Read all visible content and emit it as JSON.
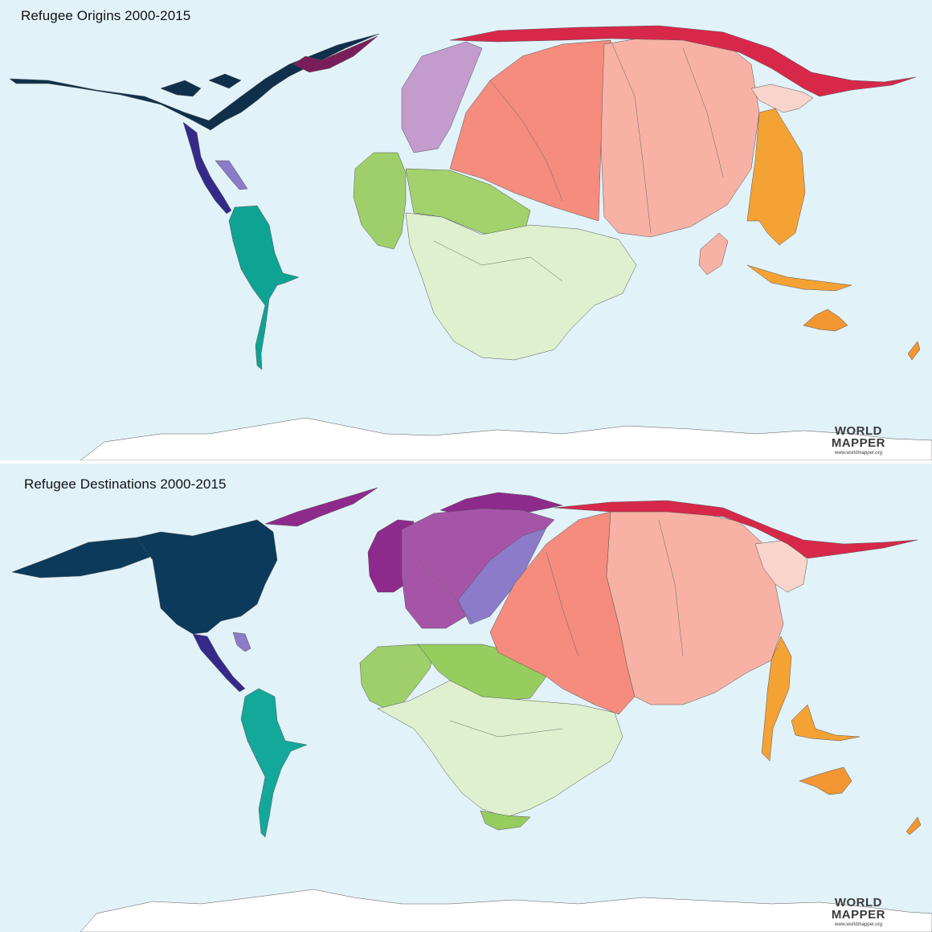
{
  "panels": [
    {
      "id": "origins",
      "title": "Refugee Origins 2000-2015",
      "regions": {
        "north_america": "#0f2f4a",
        "central_america": "#352a8a",
        "caribbean": "#8b7bc8",
        "south_america": "#0fa393",
        "west_europe": "#7a1e5b",
        "east_europe": "#c39ccd",
        "west_africa": "#9fcf6a",
        "north_africa": "#a3d16b",
        "central_southern_africa": "#dff0ce",
        "middle_east": "#f58c7e",
        "south_asia": "#f7b2a5",
        "east_asia": "#f9d4cb",
        "russia": "#d7284a",
        "southeast_asia": "#f5a234",
        "australasia": "#f29633",
        "antarctica": "#ffffff"
      }
    },
    {
      "id": "destinations",
      "title": "Refugee Destinations 2000-2015",
      "regions": {
        "north_america": "#0b3a5a",
        "central_america": "#352a8a",
        "caribbean": "#8b7bc8",
        "south_america": "#13a89a",
        "west_europe": "#8e2a8b",
        "east_europe": "#a654a8",
        "west_africa": "#9fcf6a",
        "north_africa": "#97cc5f",
        "central_southern_africa": "#dff0ce",
        "middle_east": "#f58c7e",
        "south_asia": "#f7b2a5",
        "east_asia": "#f9d4cb",
        "russia": "#d7284a",
        "southeast_asia": "#f5a234",
        "australasia": "#f29633",
        "antarctica": "#ffffff"
      }
    }
  ],
  "logo": {
    "line1": "WORLD",
    "line2": "MAPPER",
    "url": "www.worldmapper.org"
  },
  "ocean_color": "#e2f2f9"
}
